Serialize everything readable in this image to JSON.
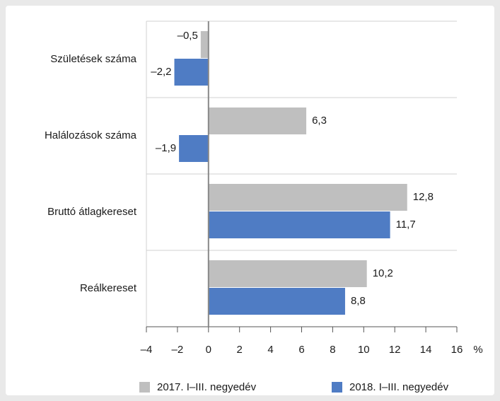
{
  "chart_data": {
    "type": "barh",
    "categories": [
      "Születések száma",
      "Halálozások száma",
      "Bruttó átlagkereset",
      "Reálkereset"
    ],
    "series": [
      {
        "name": "2017. I–III. negyedév",
        "color": "#bfbfbf",
        "values": [
          -0.5,
          6.3,
          12.8,
          10.2
        ],
        "value_labels": [
          "–0,5",
          "6,3",
          "12,8",
          "10,2"
        ]
      },
      {
        "name": "2018. I–III. negyedév",
        "color": "#4f7cc4",
        "values": [
          -2.2,
          -1.9,
          11.7,
          8.8
        ],
        "value_labels": [
          "–2,2",
          "–1,9",
          "11,7",
          "8,8"
        ]
      }
    ],
    "xlim": [
      -4,
      16
    ],
    "xticks": [
      {
        "value": -4,
        "label": "–4"
      },
      {
        "value": -2,
        "label": "–2"
      },
      0,
      2,
      4,
      6,
      8,
      10,
      12,
      14,
      16
    ],
    "x_unit": "%",
    "legend": "bottom"
  }
}
